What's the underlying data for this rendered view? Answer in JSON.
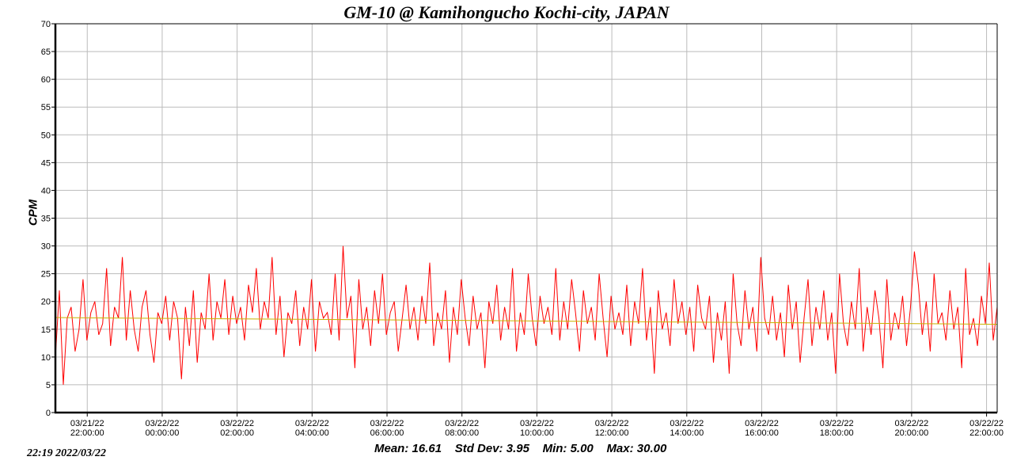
{
  "chart_data": {
    "type": "line",
    "title": "GM-10 @ Kamihongucho Kochi-city, JAPAN",
    "ylabel": "CPM",
    "xlabel": "",
    "ylim": [
      0,
      70
    ],
    "yticks": [
      0,
      5,
      10,
      15,
      20,
      25,
      30,
      35,
      40,
      45,
      50,
      55,
      60,
      65,
      70
    ],
    "x_range_minutes": [
      0,
      1508
    ],
    "xticks": [
      {
        "minute": 51,
        "date": "03/21/22",
        "time": "22:00:00"
      },
      {
        "minute": 171,
        "date": "03/22/22",
        "time": "00:00:00"
      },
      {
        "minute": 291,
        "date": "03/22/22",
        "time": "02:00:00"
      },
      {
        "minute": 411,
        "date": "03/22/22",
        "time": "04:00:00"
      },
      {
        "minute": 531,
        "date": "03/22/22",
        "time": "06:00:00"
      },
      {
        "minute": 651,
        "date": "03/22/22",
        "time": "08:00:00"
      },
      {
        "minute": 771,
        "date": "03/22/22",
        "time": "10:00:00"
      },
      {
        "minute": 891,
        "date": "03/22/22",
        "time": "12:00:00"
      },
      {
        "minute": 1011,
        "date": "03/22/22",
        "time": "14:00:00"
      },
      {
        "minute": 1131,
        "date": "03/22/22",
        "time": "16:00:00"
      },
      {
        "minute": 1251,
        "date": "03/22/22",
        "time": "18:00:00"
      },
      {
        "minute": 1371,
        "date": "03/22/22",
        "time": "20:00:00"
      },
      {
        "minute": 1491,
        "date": "03/22/22",
        "time": "22:00:00"
      }
    ],
    "grid": true,
    "series": [
      {
        "name": "CPM",
        "color": "#ff0000",
        "values": [
          10,
          22,
          5,
          17,
          19,
          11,
          15,
          24,
          13,
          18,
          20,
          14,
          16,
          26,
          12,
          19,
          17,
          28,
          13,
          22,
          15,
          11,
          19,
          22,
          14,
          9,
          18,
          16,
          21,
          13,
          20,
          17,
          6,
          19,
          12,
          22,
          9,
          18,
          15,
          25,
          13,
          20,
          17,
          24,
          14,
          21,
          16,
          19,
          13,
          23,
          18,
          26,
          15,
          20,
          17,
          28,
          14,
          21,
          10,
          18,
          16,
          22,
          12,
          19,
          15,
          24,
          11,
          20,
          17,
          18,
          14,
          25,
          13,
          30,
          17,
          21,
          8,
          24,
          15,
          19,
          12,
          22,
          16,
          25,
          14,
          18,
          20,
          11,
          17,
          23,
          15,
          19,
          13,
          21,
          16,
          27,
          12,
          18,
          15,
          22,
          9,
          19,
          14,
          24,
          17,
          12,
          21,
          15,
          18,
          8,
          20,
          16,
          23,
          13,
          19,
          15,
          26,
          11,
          18,
          14,
          25,
          17,
          12,
          21,
          16,
          19,
          14,
          26,
          13,
          20,
          15,
          24,
          18,
          11,
          22,
          16,
          19,
          13,
          25,
          17,
          10,
          21,
          15,
          18,
          14,
          23,
          12,
          20,
          16,
          26,
          13,
          19,
          7,
          22,
          15,
          18,
          12,
          24,
          16,
          20,
          14,
          19,
          11,
          23,
          17,
          15,
          21,
          9,
          18,
          13,
          20,
          7,
          25,
          16,
          12,
          22,
          15,
          19,
          11,
          28,
          17,
          14,
          21,
          13,
          18,
          10,
          23,
          15,
          20,
          9,
          17,
          24,
          12,
          19,
          15,
          22,
          13,
          18,
          7,
          25,
          16,
          12,
          20,
          15,
          26,
          11,
          19,
          14,
          22,
          17,
          8,
          24,
          13,
          18,
          15,
          21,
          12,
          19,
          29,
          23,
          14,
          20,
          11,
          25,
          16,
          18,
          13,
          22,
          15,
          19,
          8,
          26,
          14,
          17,
          12,
          21,
          16,
          27,
          13,
          19
        ]
      },
      {
        "name": "Trend",
        "color": "#c8b400",
        "values": [
          17.1,
          15.9
        ]
      }
    ]
  },
  "timestamp": "22:19   2022/03/22",
  "stats": "Mean: 16.61    Std Dev: 3.95    Min: 5.00    Max: 30.00"
}
